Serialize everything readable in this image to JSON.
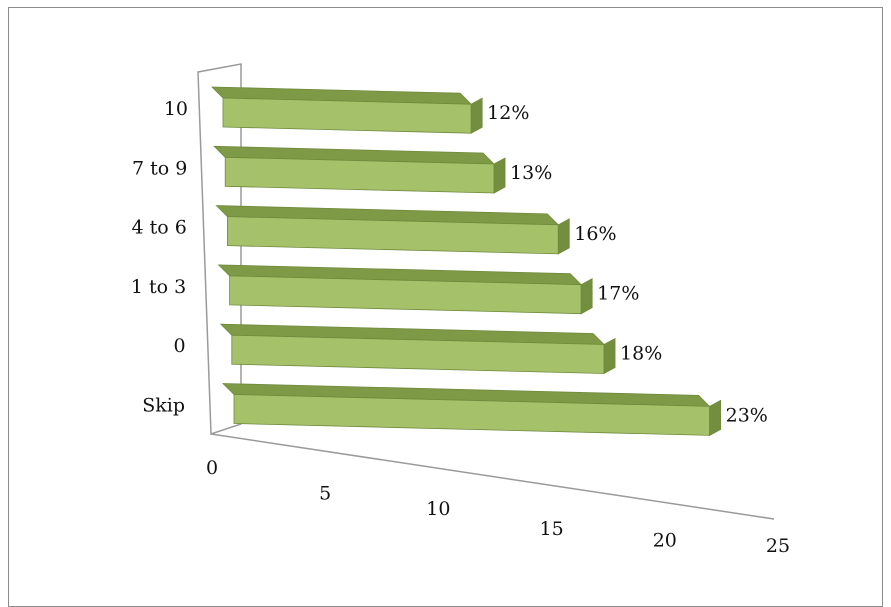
{
  "chart_data": {
    "type": "bar",
    "orientation": "horizontal",
    "style": "3d",
    "categories": [
      "10",
      "7 to 9",
      "4 to 6",
      "1 to 3",
      "0",
      "Skip"
    ],
    "values": [
      12,
      13,
      16,
      17,
      18,
      23
    ],
    "data_labels": [
      "12%",
      "13%",
      "16%",
      "17%",
      "18%",
      "23%"
    ],
    "x_ticks": [
      "0",
      "5",
      "10",
      "15",
      "20",
      "25"
    ],
    "xlim": [
      0,
      25
    ],
    "title": "",
    "xlabel": "",
    "ylabel": "",
    "grid": false,
    "legend": "none",
    "colors": {
      "bar_front": "#a5c26b",
      "bar_top": "#7e9a46",
      "bar_side": "#738e3e",
      "bar_edge": "#6f8a3b",
      "axis": "#9a9a9a"
    }
  }
}
